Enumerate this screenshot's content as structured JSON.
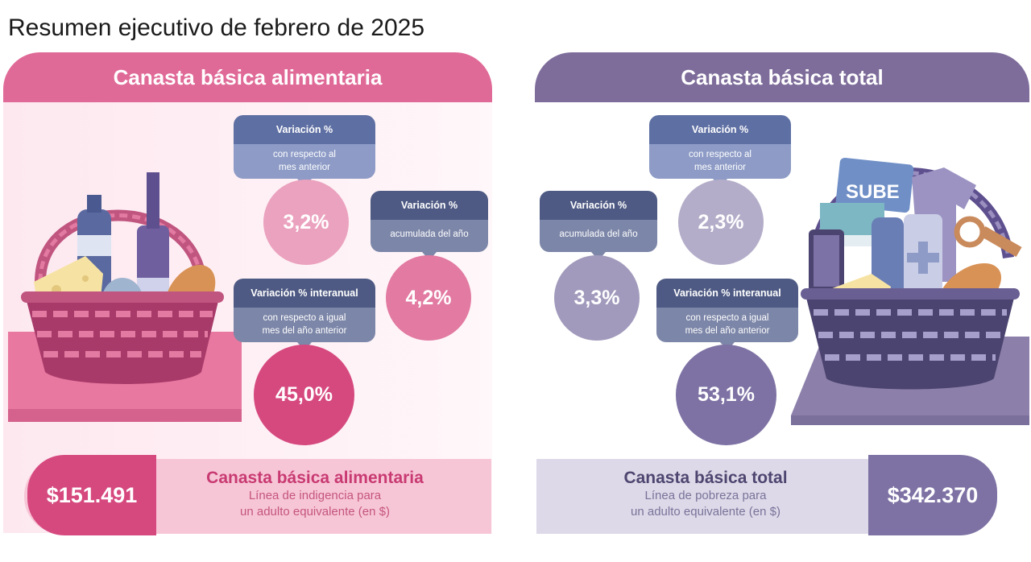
{
  "page_title": "Resumen ejecutivo de febrero de 2025",
  "colors": {
    "alimentaria_accent": "#e06a97",
    "total_accent": "#7e6d9b",
    "bubble_dark": "#4e5a83",
    "bubble_blue": "#5e6fa3"
  },
  "alimentaria": {
    "header": "Canasta básica alimentaria",
    "mensual": {
      "label": "Variación %",
      "desc": [
        "con respecto al",
        "mes anterior"
      ],
      "value": "3,2%"
    },
    "acumulada": {
      "label": "Variación %",
      "desc": [
        "acumulada del año"
      ],
      "value": "4,2%"
    },
    "interanual": {
      "label": "Variación % interanual",
      "desc": [
        "con respecto a igual",
        "mes del año anterior"
      ],
      "value": "45,0%"
    },
    "price": "$151.491",
    "bottom_title": "Canasta básica alimentaria",
    "bottom_sub": [
      "Línea de indigencia para",
      "un adulto equivalente (en $)"
    ]
  },
  "total": {
    "header": "Canasta básica total",
    "mensual": {
      "label": "Variación %",
      "desc": [
        "con respecto al",
        "mes anterior"
      ],
      "value": "2,3%"
    },
    "acumulada": {
      "label": "Variación %",
      "desc": [
        "acumulada del año"
      ],
      "value": "3,3%"
    },
    "interanual": {
      "label": "Variación % interanual",
      "desc": [
        "con respecto a igual",
        "mes del año anterior"
      ],
      "value": "53,1%"
    },
    "price": "$342.370",
    "bottom_title": "Canasta básica total",
    "bottom_sub": [
      "Línea de pobreza para",
      "un adulto equivalente (en $)"
    ]
  },
  "icons": {
    "left_basket": "food-basket-illustration",
    "right_basket": "full-basket-illustration",
    "sube_card_text": "SUBE"
  }
}
